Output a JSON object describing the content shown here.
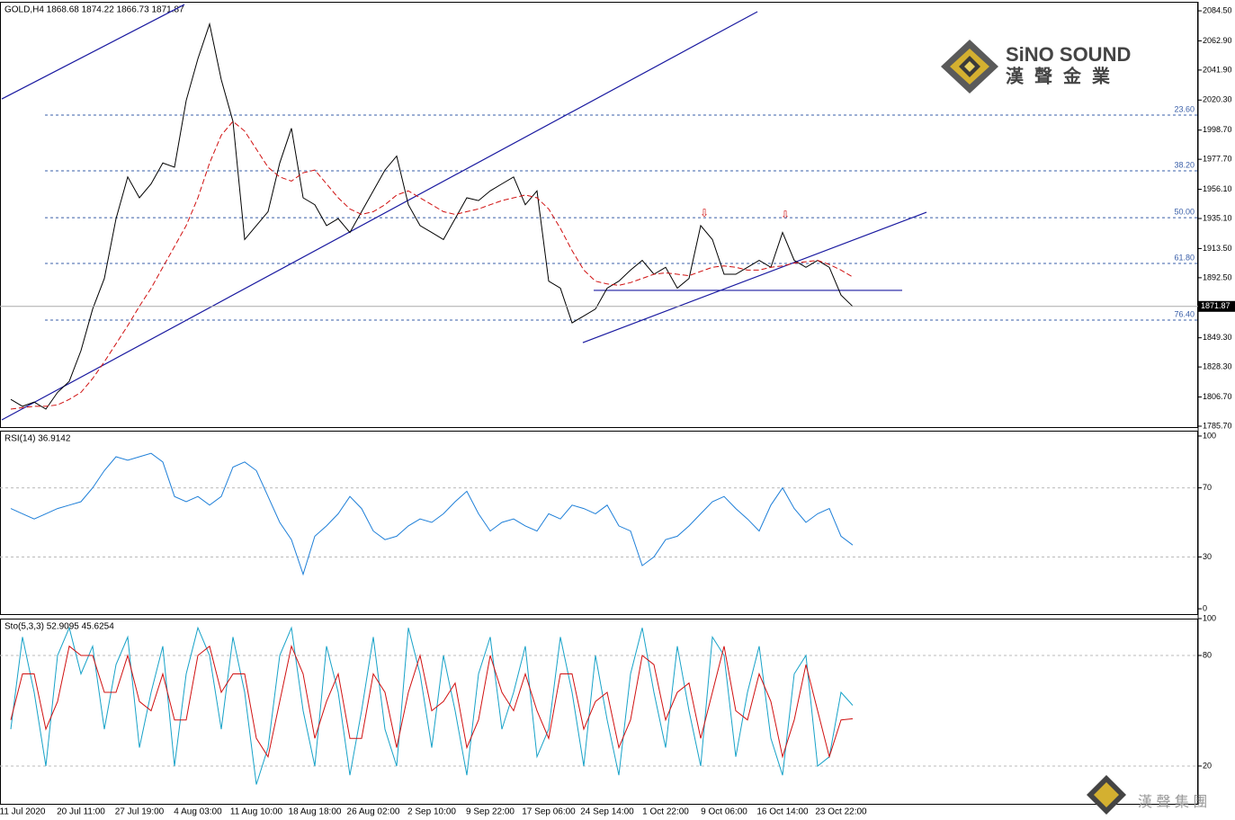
{
  "chart_data": [
    {
      "type": "line",
      "title": "GOLD,H4  1868.68 1874.22 1866.73 1871.87",
      "categories": [
        null,
        "11 Jul 2020",
        null,
        null,
        null,
        null,
        "20 Jul 11:00",
        null,
        null,
        null,
        null,
        "27 Jul 19:00",
        null,
        null,
        null,
        null,
        "4 Aug 03:00",
        null,
        null,
        null,
        null,
        "11 Aug 10:00",
        null,
        null,
        null,
        null,
        "18 Aug 18:00",
        null,
        null,
        null,
        null,
        "26 Aug 02:00",
        null,
        null,
        null,
        null,
        "2 Sep 10:00",
        null,
        null,
        null,
        null,
        "9 Sep 22:00",
        null,
        null,
        null,
        null,
        "17 Sep 06:00",
        null,
        null,
        null,
        null,
        "24 Sep 14:00",
        null,
        null,
        null,
        null,
        "1 Oct 22:00",
        null,
        null,
        null,
        null,
        "9 Oct 06:00",
        null,
        null,
        null,
        null,
        "16 Oct 14:00",
        null,
        null,
        null,
        null,
        "23 Oct 22:00",
        null
      ],
      "series": [
        {
          "color": "#000000",
          "values": [
            1805,
            1800,
            1803,
            1798,
            1810,
            1818,
            1840,
            1870,
            1892,
            1935,
            1965,
            1950,
            1960,
            1975,
            1972,
            2020,
            2050,
            2075,
            2035,
            2005,
            1920,
            1930,
            1940,
            1975,
            2000,
            1950,
            1945,
            1930,
            1935,
            1925,
            1940,
            1955,
            1970,
            1980,
            1945,
            1930,
            1925,
            1920,
            1935,
            1950,
            1948,
            1955,
            1960,
            1965,
            1945,
            1955,
            1890,
            1885,
            1860,
            1865,
            1870,
            1885,
            1890,
            1898,
            1905,
            1895,
            1900,
            1885,
            1892,
            1930,
            1920,
            1895,
            1895,
            1900,
            1905,
            1900,
            1925,
            1905,
            1900,
            1905,
            1900,
            1880,
            1871.87
          ]
        },
        {
          "color": "#d01010",
          "dashed": true,
          "values": [
            1798,
            1799,
            1800,
            1800,
            1801,
            1805,
            1810,
            1820,
            1832,
            1845,
            1858,
            1872,
            1885,
            1900,
            1915,
            1930,
            1950,
            1975,
            1995,
            2005,
            1998,
            1985,
            1972,
            1965,
            1962,
            1968,
            1970,
            1960,
            1950,
            1942,
            1938,
            1940,
            1945,
            1952,
            1955,
            1950,
            1945,
            1940,
            1938,
            1940,
            1942,
            1945,
            1948,
            1950,
            1952,
            1950,
            1942,
            1928,
            1912,
            1898,
            1890,
            1888,
            1887,
            1889,
            1892,
            1895,
            1896,
            1895,
            1894,
            1897,
            1900,
            1901,
            1900,
            1898,
            1898,
            1900,
            1901,
            1903,
            1904,
            1905,
            1902,
            1898,
            1893
          ]
        }
      ],
      "ylim": [
        1784.4,
        2091.0
      ],
      "yticks": [
        {
          "value": 2084.5,
          "label": "2084.50"
        },
        {
          "value": 2062.9,
          "label": "2062.90"
        },
        {
          "value": 2041.9,
          "label": "2041.90"
        },
        {
          "value": 2020.3,
          "label": "2020.30"
        },
        {
          "value": 1998.7,
          "label": "1998.70"
        },
        {
          "value": 1977.7,
          "label": "1977.70"
        },
        {
          "value": 1956.1,
          "label": "1956.10"
        },
        {
          "value": 1935.1,
          "label": "1935.10"
        },
        {
          "value": 1913.5,
          "label": "1913.50"
        },
        {
          "value": 1892.5,
          "label": "1892.50"
        },
        {
          "value": 1849.3,
          "label": "1849.30"
        },
        {
          "value": 1828.3,
          "label": "1828.30"
        },
        {
          "value": 1806.7,
          "label": "1806.70"
        },
        {
          "value": 1785.7,
          "label": "1785.70"
        }
      ],
      "fib_levels": [
        {
          "value": 2009.5,
          "label": "23.60"
        },
        {
          "value": 1969.4,
          "label": "38.20"
        },
        {
          "value": 1935.7,
          "label": "50.00"
        },
        {
          "value": 1902.8,
          "label": "61.80"
        },
        {
          "value": 1862.0,
          "label": "76.40"
        }
      ],
      "trend_lines": [
        {
          "x": [
            -0.77,
            14.85
          ],
          "y": [
            2021.1,
            2089.0
          ]
        },
        {
          "x": [
            -0.77,
            63.85
          ],
          "y": [
            1790.2,
            2083.9
          ]
        },
        {
          "x": [
            48.92,
            78.31
          ],
          "y": [
            1845.8,
            1939.6
          ]
        },
        {
          "x": [
            49.85,
            76.23
          ],
          "y": [
            1883.4,
            1883.4
          ]
        }
      ]
    },
    {
      "type": "line",
      "title": "RSI(14) 36.9142",
      "series": [
        {
          "color": "#1e7fd8",
          "values": [
            58,
            55,
            52,
            55,
            58,
            60,
            62,
            70,
            80,
            88,
            86,
            88,
            90,
            85,
            65,
            62,
            65,
            60,
            65,
            82,
            85,
            80,
            65,
            50,
            40,
            20,
            42,
            48,
            55,
            65,
            58,
            45,
            40,
            42,
            48,
            52,
            50,
            55,
            62,
            68,
            55,
            45,
            50,
            52,
            48,
            45,
            55,
            52,
            60,
            58,
            55,
            60,
            48,
            45,
            25,
            30,
            40,
            42,
            48,
            55,
            62,
            65,
            58,
            52,
            45,
            60,
            70,
            58,
            50,
            55,
            58,
            42,
            36.9142
          ]
        }
      ],
      "ylim": [
        -3.6,
        103.1
      ],
      "yticks": [
        100,
        70,
        30,
        0
      ],
      "levels": [
        70,
        30
      ]
    },
    {
      "type": "line",
      "title": "Sto(5,3,3) 52.9095 45.6254",
      "series": [
        {
          "color": "#17a2c8",
          "values": [
            40,
            90,
            60,
            20,
            80,
            95,
            70,
            85,
            40,
            75,
            90,
            30,
            60,
            85,
            20,
            70,
            95,
            80,
            40,
            90,
            60,
            10,
            30,
            80,
            95,
            50,
            20,
            85,
            60,
            15,
            50,
            90,
            40,
            20,
            95,
            70,
            30,
            80,
            50,
            15,
            70,
            90,
            40,
            60,
            85,
            25,
            40,
            90,
            60,
            20,
            80,
            45,
            15,
            70,
            95,
            60,
            30,
            85,
            50,
            20,
            90,
            80,
            25,
            60,
            85,
            35,
            15,
            70,
            80,
            20,
            25,
            60,
            52.9095
          ]
        },
        {
          "color": "#d01010",
          "values": [
            45,
            70,
            70,
            40,
            55,
            85,
            80,
            80,
            60,
            60,
            80,
            55,
            50,
            70,
            45,
            45,
            80,
            85,
            60,
            70,
            70,
            35,
            25,
            55,
            85,
            70,
            35,
            55,
            70,
            35,
            35,
            70,
            60,
            30,
            60,
            80,
            50,
            55,
            65,
            30,
            45,
            80,
            60,
            50,
            70,
            50,
            35,
            70,
            70,
            40,
            55,
            60,
            30,
            45,
            80,
            75,
            45,
            60,
            65,
            35,
            60,
            85,
            50,
            45,
            70,
            55,
            25,
            45,
            75,
            50,
            25,
            45,
            45.6254
          ]
        }
      ],
      "ylim": [
        -1,
        100
      ],
      "yticks": [
        100,
        80,
        20
      ],
      "levels": [
        80,
        20
      ]
    }
  ],
  "branding": {
    "name": "SiNO SOUND",
    "name_cn": "漢聲金業",
    "footer": "漢 聲 集 團"
  }
}
